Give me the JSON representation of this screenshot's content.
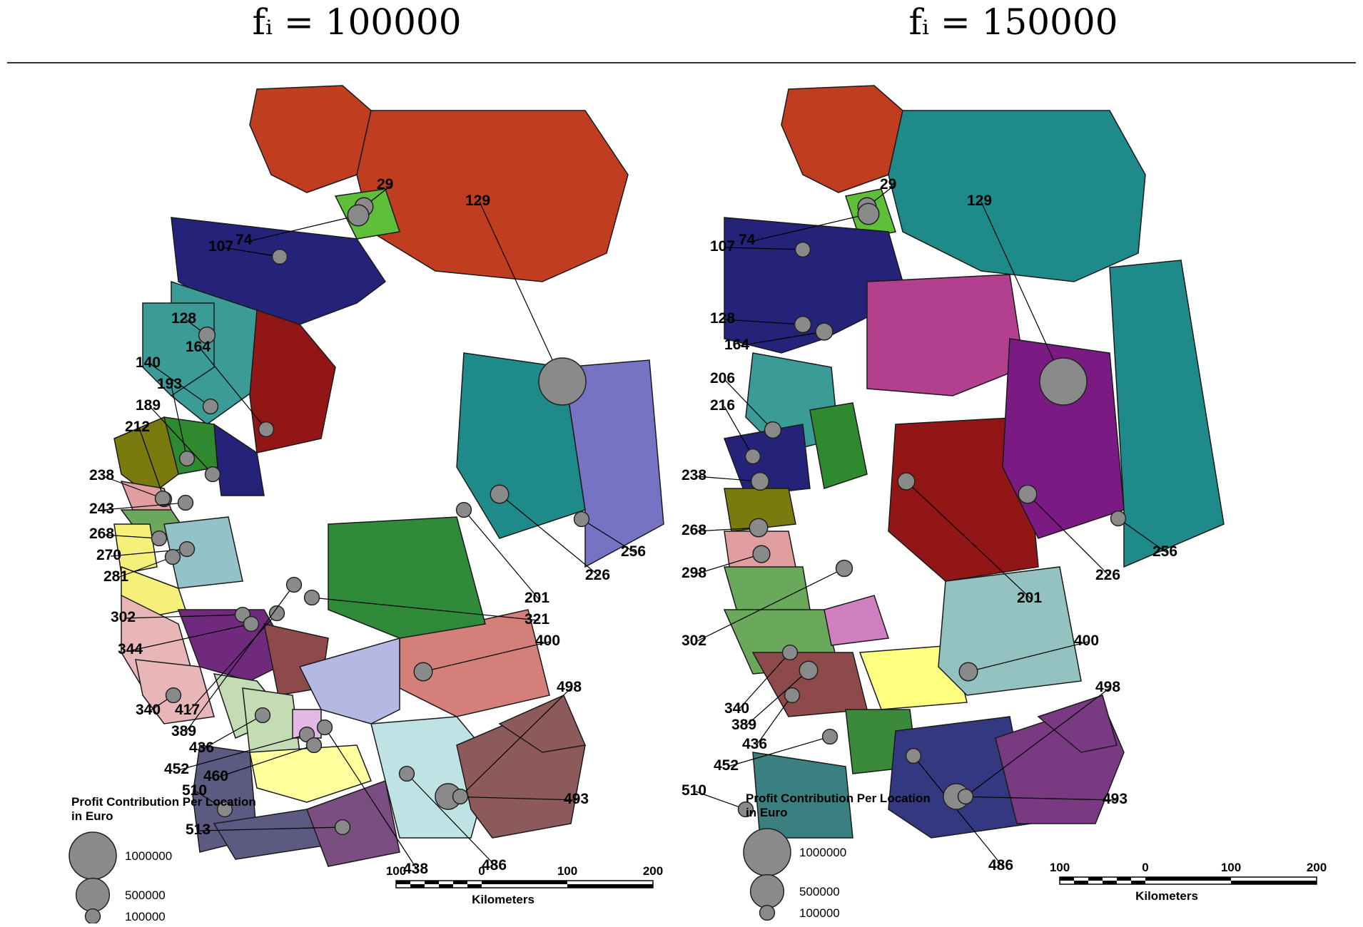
{
  "headers": {
    "left": "fᵢ = 100000",
    "right": "fᵢ = 150000"
  },
  "legend": {
    "title_line1": "Profit Contribution Per Location",
    "title_line2": "in Euro",
    "sizes": [
      {
        "label": "1000000",
        "value": 1000000
      },
      {
        "label": "500000",
        "value": 500000
      },
      {
        "label": "100000",
        "value": 100000
      }
    ]
  },
  "scalebar": {
    "ticks": [
      "100",
      "0",
      "100",
      "200"
    ],
    "unit": "Kilometers"
  },
  "colors": {
    "border": "#1a1a1a",
    "marker": "#8a8a8a",
    "rule": "#333333"
  },
  "maps": {
    "left": {
      "regions": [
        {
          "id": "29",
          "color": "#c13d1f"
        },
        {
          "id": "129",
          "color": "#c13d1f"
        },
        {
          "id": "74",
          "color": "#5fbf3a"
        },
        {
          "id": "107",
          "color": "#252279"
        },
        {
          "id": "128",
          "color": "#3a9b97"
        },
        {
          "id": "140",
          "color": "#3a9b97"
        },
        {
          "id": "164",
          "color": "#921616"
        },
        {
          "id": "193",
          "color": "#2f8a2f"
        },
        {
          "id": "189",
          "color": "#252279"
        },
        {
          "id": "212",
          "color": "#7a7a0e"
        },
        {
          "id": "238",
          "color": "#e09ea0"
        },
        {
          "id": "243",
          "color": "#6aa85b"
        },
        {
          "id": "268",
          "color": "#f5f07a"
        },
        {
          "id": "270",
          "color": "#93c2c8"
        },
        {
          "id": "281",
          "color": "#f5f07a"
        },
        {
          "id": "302",
          "color": "#e8b6b6"
        },
        {
          "id": "344",
          "color": "#6f2a7e"
        },
        {
          "id": "340",
          "color": "#e8b6b6"
        },
        {
          "id": "417",
          "color": "#c3dcb4"
        },
        {
          "id": "389",
          "color": "#8e4a4a"
        },
        {
          "id": "436",
          "color": "#c3dcb4"
        },
        {
          "id": "452",
          "color": "#e4b8e4"
        },
        {
          "id": "460",
          "color": "#ffff9e"
        },
        {
          "id": "510",
          "color": "#5d5a82"
        },
        {
          "id": "513",
          "color": "#5d5a82"
        },
        {
          "id": "438",
          "color": "#7a4e80"
        },
        {
          "id": "486",
          "color": "#bfe2e4"
        },
        {
          "id": "493",
          "color": "#8c5a5a"
        },
        {
          "id": "498",
          "color": "#8c5a5a"
        },
        {
          "id": "400",
          "color": "#d47f7a"
        },
        {
          "id": "321",
          "color": "#b6b8e4"
        },
        {
          "id": "201",
          "color": "#2f8a3a"
        },
        {
          "id": "226",
          "color": "#1e8a8a"
        },
        {
          "id": "256",
          "color": "#7773c4"
        }
      ],
      "locations": [
        {
          "id": "29",
          "profit": 150000
        },
        {
          "id": "129",
          "profit": 1000000
        },
        {
          "id": "74",
          "profit": 200000
        },
        {
          "id": "107",
          "profit": 100000
        },
        {
          "id": "128",
          "profit": 120000
        },
        {
          "id": "140",
          "profit": 100000
        },
        {
          "id": "164",
          "profit": 100000
        },
        {
          "id": "193",
          "profit": 100000
        },
        {
          "id": "189",
          "profit": 100000
        },
        {
          "id": "212",
          "profit": 100000
        },
        {
          "id": "238",
          "profit": 100000
        },
        {
          "id": "243",
          "profit": 100000
        },
        {
          "id": "268",
          "profit": 100000
        },
        {
          "id": "270",
          "profit": 100000
        },
        {
          "id": "281",
          "profit": 100000
        },
        {
          "id": "302",
          "profit": 100000
        },
        {
          "id": "344",
          "profit": 100000
        },
        {
          "id": "340",
          "profit": 100000
        },
        {
          "id": "417",
          "profit": 100000
        },
        {
          "id": "389",
          "profit": 100000
        },
        {
          "id": "436",
          "profit": 100000
        },
        {
          "id": "452",
          "profit": 100000
        },
        {
          "id": "460",
          "profit": 100000
        },
        {
          "id": "510",
          "profit": 100000
        },
        {
          "id": "513",
          "profit": 100000
        },
        {
          "id": "438",
          "profit": 100000
        },
        {
          "id": "486",
          "profit": 100000
        },
        {
          "id": "493",
          "profit": 300000
        },
        {
          "id": "498",
          "profit": 100000
        },
        {
          "id": "400",
          "profit": 150000
        },
        {
          "id": "321",
          "profit": 100000
        },
        {
          "id": "201",
          "profit": 100000
        },
        {
          "id": "226",
          "profit": 150000
        },
        {
          "id": "256",
          "profit": 100000
        }
      ]
    },
    "right": {
      "regions": [
        {
          "id": "29",
          "color": "#c13d1f"
        },
        {
          "id": "129",
          "color": "#1e8a8a"
        },
        {
          "id": "74",
          "color": "#5fbf3a"
        },
        {
          "id": "107",
          "color": "#252279"
        },
        {
          "id": "128",
          "color": "#b2408f"
        },
        {
          "id": "164",
          "color": "#3a9b97"
        },
        {
          "id": "206",
          "color": "#2f8a2f"
        },
        {
          "id": "216",
          "color": "#252279"
        },
        {
          "id": "238",
          "color": "#7a7a0e"
        },
        {
          "id": "268",
          "color": "#e09ea0"
        },
        {
          "id": "298",
          "color": "#6aa85b"
        },
        {
          "id": "302",
          "color": "#6aa85b"
        },
        {
          "id": "340",
          "color": "#8e4a4a"
        },
        {
          "id": "389",
          "color": "#ffff80"
        },
        {
          "id": "436",
          "color": "#d07fc0"
        },
        {
          "id": "452",
          "color": "#3a8a3a"
        },
        {
          "id": "510",
          "color": "#3a8080"
        },
        {
          "id": "486",
          "color": "#343880"
        },
        {
          "id": "493",
          "color": "#7a3a82"
        },
        {
          "id": "498",
          "color": "#7a3a82"
        },
        {
          "id": "400",
          "color": "#93c2c0"
        },
        {
          "id": "201",
          "color": "#921616"
        },
        {
          "id": "226",
          "color": "#7a1a82"
        },
        {
          "id": "256",
          "color": "#1e8a8a"
        }
      ],
      "locations": [
        {
          "id": "29",
          "profit": 150000
        },
        {
          "id": "129",
          "profit": 1000000
        },
        {
          "id": "74",
          "profit": 200000
        },
        {
          "id": "107",
          "profit": 100000
        },
        {
          "id": "128",
          "profit": 120000
        },
        {
          "id": "164",
          "profit": 130000
        },
        {
          "id": "206",
          "profit": 120000
        },
        {
          "id": "216",
          "profit": 100000
        },
        {
          "id": "238",
          "profit": 140000
        },
        {
          "id": "268",
          "profit": 150000
        },
        {
          "id": "298",
          "profit": 130000
        },
        {
          "id": "302",
          "profit": 120000
        },
        {
          "id": "340",
          "profit": 100000
        },
        {
          "id": "389",
          "profit": 150000
        },
        {
          "id": "436",
          "profit": 100000
        },
        {
          "id": "452",
          "profit": 100000
        },
        {
          "id": "510",
          "profit": 100000
        },
        {
          "id": "486",
          "profit": 100000
        },
        {
          "id": "493",
          "profit": 300000
        },
        {
          "id": "498",
          "profit": 100000
        },
        {
          "id": "400",
          "profit": 150000
        },
        {
          "id": "201",
          "profit": 130000
        },
        {
          "id": "226",
          "profit": 150000
        },
        {
          "id": "256",
          "profit": 100000
        }
      ]
    }
  }
}
